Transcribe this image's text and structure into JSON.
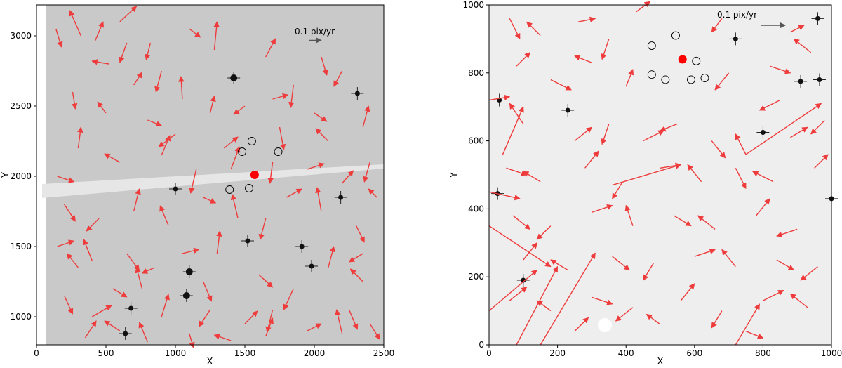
{
  "chart_data": [
    {
      "type": "scatter",
      "title": "",
      "xlabel": "X",
      "ylabel": "Y",
      "xlim": [
        0,
        2500
      ],
      "ylim": [
        800,
        3220
      ],
      "xticks": [
        0,
        500,
        1000,
        1500,
        2000,
        2500
      ],
      "yticks": [
        1000,
        1500,
        2000,
        2500,
        3000
      ],
      "grid": false,
      "scale_bar": {
        "label": "0.1 pix/yr",
        "x": 1960,
        "y": 2968,
        "dx": 90
      },
      "target": {
        "x": 1570,
        "y": 2010,
        "color": "#ff0000"
      },
      "circled_sources": [
        [
          1480,
          2175
        ],
        [
          1550,
          2250
        ],
        [
          1740,
          2175
        ],
        [
          1390,
          1905
        ],
        [
          1530,
          1915
        ]
      ],
      "bright_stars": [
        [
          1420,
          2700
        ],
        [
          1100,
          1320
        ],
        [
          1080,
          1150
        ],
        [
          2190,
          1850
        ],
        [
          1520,
          1540
        ],
        [
          680,
          1060
        ],
        [
          1980,
          1360
        ],
        [
          2310,
          2590
        ],
        [
          1000,
          1910
        ],
        [
          640,
          880
        ],
        [
          1910,
          1500
        ]
      ],
      "vectors": [
        [
          140,
          3050,
          40,
          -130
        ],
        [
          320,
          3000,
          -80,
          180
        ],
        [
          420,
          2960,
          60,
          140
        ],
        [
          600,
          3100,
          120,
          110
        ],
        [
          520,
          2800,
          -120,
          20
        ],
        [
          820,
          2950,
          -30,
          -120
        ],
        [
          1100,
          3050,
          80,
          -60
        ],
        [
          1280,
          2900,
          20,
          200
        ],
        [
          700,
          2650,
          60,
          90
        ],
        [
          900,
          2750,
          -40,
          -150
        ],
        [
          260,
          2600,
          20,
          -120
        ],
        [
          500,
          2450,
          -60,
          80
        ],
        [
          800,
          2400,
          100,
          -40
        ],
        [
          1050,
          2550,
          -10,
          160
        ],
        [
          1250,
          2450,
          30,
          120
        ],
        [
          1650,
          2850,
          70,
          130
        ],
        [
          1850,
          2650,
          -20,
          -160
        ],
        [
          2000,
          2450,
          90,
          -60
        ],
        [
          2200,
          2750,
          -60,
          -110
        ],
        [
          2350,
          2350,
          40,
          150
        ],
        [
          1500,
          2500,
          -80,
          -60
        ],
        [
          1750,
          2350,
          30,
          -160
        ],
        [
          2100,
          2250,
          -90,
          90
        ],
        [
          2400,
          2100,
          -40,
          -140
        ],
        [
          1950,
          2050,
          120,
          40
        ],
        [
          300,
          2200,
          20,
          150
        ],
        [
          600,
          2100,
          -110,
          60
        ],
        [
          900,
          2150,
          60,
          140
        ],
        [
          1150,
          2050,
          -40,
          -170
        ],
        [
          1350,
          2200,
          100,
          80
        ],
        [
          200,
          1800,
          80,
          -120
        ],
        [
          450,
          1700,
          -90,
          -90
        ],
        [
          700,
          1750,
          40,
          160
        ],
        [
          950,
          1650,
          -60,
          140
        ],
        [
          1200,
          1850,
          90,
          -40
        ],
        [
          1650,
          1700,
          -40,
          -150
        ],
        [
          1800,
          1850,
          110,
          60
        ],
        [
          2050,
          1750,
          -30,
          170
        ],
        [
          2300,
          1650,
          60,
          -120
        ],
        [
          2450,
          1850,
          -60,
          60
        ],
        [
          150,
          1500,
          120,
          40
        ],
        [
          400,
          1400,
          -60,
          150
        ],
        [
          650,
          1450,
          90,
          -120
        ],
        [
          850,
          1350,
          -90,
          -40
        ],
        [
          1300,
          1450,
          20,
          160
        ],
        [
          1600,
          1300,
          100,
          -90
        ],
        [
          1850,
          1200,
          -70,
          -150
        ],
        [
          2100,
          1350,
          40,
          150
        ],
        [
          2350,
          1250,
          -90,
          90
        ],
        [
          2250,
          1050,
          60,
          -140
        ],
        [
          200,
          1150,
          60,
          -130
        ],
        [
          400,
          1000,
          140,
          80
        ],
        [
          600,
          900,
          -110,
          70
        ],
        [
          900,
          1000,
          50,
          160
        ],
        [
          1250,
          1050,
          -80,
          -120
        ],
        [
          1500,
          950,
          90,
          90
        ],
        [
          1700,
          1050,
          -40,
          -160
        ],
        [
          1950,
          900,
          100,
          50
        ],
        [
          2200,
          880,
          -40,
          170
        ],
        [
          2400,
          950,
          70,
          -110
        ],
        [
          350,
          850,
          80,
          120
        ],
        [
          800,
          820,
          -60,
          140
        ],
        [
          1100,
          880,
          30,
          -100
        ],
        [
          1400,
          830,
          -120,
          40
        ],
        [
          1650,
          860,
          50,
          130
        ],
        [
          1000,
          2300,
          -120,
          -90
        ],
        [
          1400,
          2050,
          60,
          160
        ],
        [
          1700,
          2100,
          -20,
          -150
        ],
        [
          2200,
          1950,
          80,
          90
        ],
        [
          550,
          1200,
          100,
          -60
        ],
        [
          760,
          1200,
          -40,
          150
        ],
        [
          1050,
          1450,
          120,
          30
        ],
        [
          1450,
          1700,
          -40,
          170
        ],
        [
          1200,
          1250,
          60,
          -140
        ],
        [
          300,
          1350,
          -80,
          100
        ],
        [
          150,
          2000,
          120,
          -40
        ],
        [
          650,
          2950,
          -50,
          -140
        ],
        [
          1700,
          2550,
          110,
          30
        ],
        [
          2050,
          2850,
          40,
          -130
        ],
        [
          2350,
          1450,
          -100,
          -60
        ]
      ]
    },
    {
      "type": "scatter",
      "title": "",
      "xlabel": "X",
      "ylabel": "Y",
      "xlim": [
        0,
        1000
      ],
      "ylim": [
        0,
        1000
      ],
      "xticks": [
        0,
        200,
        400,
        600,
        800,
        1000
      ],
      "yticks": [
        0,
        200,
        400,
        600,
        800,
        1000
      ],
      "grid": false,
      "scale_bar": {
        "label": "0.1 pix/yr",
        "x": 795,
        "y": 940,
        "dx": 70
      },
      "target": {
        "x": 565,
        "y": 840,
        "color": "#ff0000"
      },
      "circled_sources": [
        [
          545,
          910
        ],
        [
          475,
          880
        ],
        [
          475,
          795
        ],
        [
          515,
          780
        ],
        [
          605,
          835
        ],
        [
          590,
          780
        ],
        [
          630,
          785
        ]
      ],
      "bright_stars": [
        [
          910,
          775
        ],
        [
          965,
          780
        ],
        [
          800,
          625
        ],
        [
          230,
          690
        ],
        [
          25,
          445
        ],
        [
          30,
          720
        ],
        [
          720,
          900
        ],
        [
          100,
          190
        ],
        [
          960,
          960
        ],
        [
          1000,
          430
        ]
      ],
      "vectors": [
        [
          60,
          960,
          30,
          -60
        ],
        [
          150,
          910,
          -40,
          40
        ],
        [
          260,
          950,
          50,
          10
        ],
        [
          350,
          900,
          -20,
          -60
        ],
        [
          430,
          980,
          40,
          30
        ],
        [
          680,
          960,
          -30,
          -40
        ],
        [
          880,
          920,
          40,
          20
        ],
        [
          940,
          860,
          -50,
          40
        ],
        [
          820,
          820,
          60,
          -20
        ],
        [
          700,
          800,
          -40,
          -50
        ],
        [
          80,
          820,
          40,
          40
        ],
        [
          180,
          780,
          60,
          -30
        ],
        [
          300,
          830,
          -50,
          20
        ],
        [
          400,
          760,
          20,
          50
        ],
        [
          850,
          720,
          -60,
          -30
        ],
        [
          100,
          650,
          -40,
          60
        ],
        [
          250,
          600,
          50,
          40
        ],
        [
          350,
          650,
          -20,
          -60
        ],
        [
          450,
          600,
          60,
          30
        ],
        [
          550,
          650,
          -50,
          -20
        ],
        [
          650,
          600,
          40,
          -50
        ],
        [
          750,
          560,
          -30,
          60
        ],
        [
          880,
          610,
          50,
          30
        ],
        [
          980,
          660,
          -40,
          -40
        ],
        [
          50,
          520,
          60,
          -20
        ],
        [
          150,
          480,
          -50,
          30
        ],
        [
          280,
          520,
          40,
          50
        ],
        [
          390,
          480,
          -30,
          -50
        ],
        [
          500,
          520,
          60,
          10
        ],
        [
          620,
          480,
          -40,
          50
        ],
        [
          720,
          520,
          30,
          -60
        ],
        [
          830,
          480,
          -60,
          30
        ],
        [
          950,
          520,
          40,
          40
        ],
        [
          70,
          380,
          50,
          -40
        ],
        [
          180,
          350,
          -40,
          -40
        ],
        [
          300,
          390,
          60,
          20
        ],
        [
          420,
          350,
          -20,
          60
        ],
        [
          540,
          380,
          50,
          -30
        ],
        [
          660,
          340,
          -50,
          40
        ],
        [
          780,
          380,
          40,
          50
        ],
        [
          900,
          340,
          -60,
          -20
        ],
        [
          100,
          250,
          40,
          50
        ],
        [
          230,
          220,
          -50,
          30
        ],
        [
          360,
          260,
          50,
          -40
        ],
        [
          480,
          240,
          -30,
          -50
        ],
        [
          600,
          260,
          60,
          20
        ],
        [
          720,
          230,
          -40,
          50
        ],
        [
          840,
          250,
          50,
          -30
        ],
        [
          960,
          230,
          -50,
          -40
        ],
        [
          60,
          130,
          50,
          40
        ],
        [
          180,
          100,
          -40,
          30
        ],
        [
          300,
          140,
          60,
          -20
        ],
        [
          420,
          110,
          -50,
          -40
        ],
        [
          560,
          130,
          40,
          50
        ],
        [
          680,
          100,
          -30,
          -50
        ],
        [
          800,
          130,
          60,
          30
        ],
        [
          930,
          110,
          -50,
          40
        ],
        [
          250,
          40,
          40,
          40
        ],
        [
          500,
          60,
          -40,
          30
        ],
        [
          750,
          40,
          50,
          -20
        ],
        [
          0,
          450,
          90,
          -20
        ],
        [
          0,
          720,
          60,
          10
        ],
        [
          0,
          100,
          140,
          120
        ],
        [
          750,
          560,
          220,
          150
        ],
        [
          360,
          470,
          200,
          60
        ],
        [
          0,
          350,
          180,
          -120
        ],
        [
          80,
          0,
          120,
          230
        ],
        [
          150,
          0,
          160,
          270
        ],
        [
          40,
          560,
          60,
          140
        ],
        [
          720,
          0,
          70,
          120
        ]
      ]
    }
  ]
}
